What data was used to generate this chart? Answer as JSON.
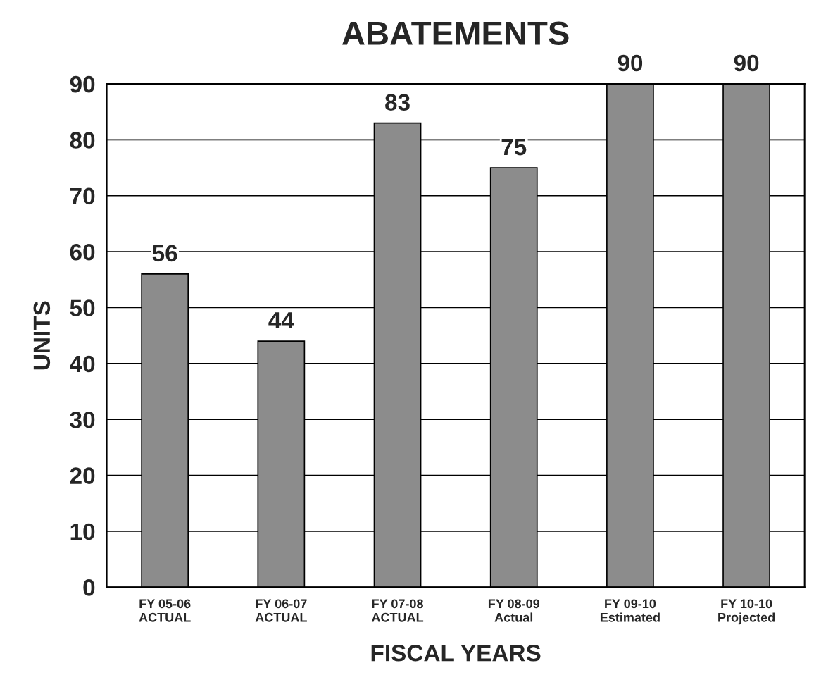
{
  "chart_data": {
    "type": "bar",
    "title": "ABATEMENTS",
    "xlabel": "FISCAL YEARS",
    "ylabel": "UNITS",
    "categories": [
      "FY 05-06\nACTUAL",
      "FY 06-07\nACTUAL",
      "FY 07-08\nACTUAL",
      "FY 08-09\nActual",
      "FY 09-10\nEstimated",
      "FY 10-10\nProjected"
    ],
    "values": [
      56,
      44,
      83,
      75,
      90,
      90
    ],
    "color": "#8c8c8c",
    "ylim": [
      0,
      90
    ],
    "yticks": [
      0,
      10,
      20,
      30,
      40,
      50,
      60,
      70,
      80,
      90
    ],
    "grid": "y",
    "data_labels": true
  }
}
